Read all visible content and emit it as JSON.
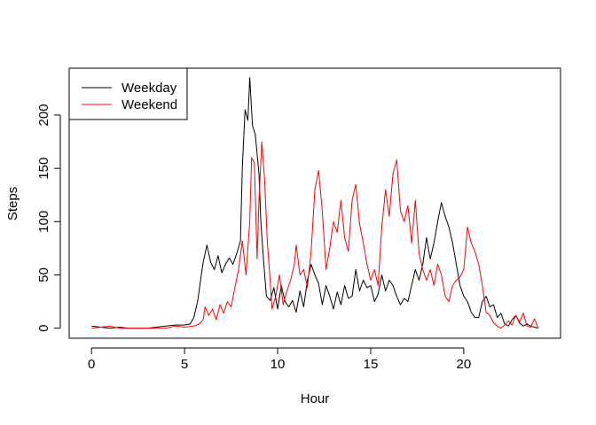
{
  "chart_data": {
    "type": "line",
    "title": "",
    "xlabel": "Hour",
    "ylabel": "Steps",
    "xlim": [
      -1.2,
      25.2
    ],
    "ylim": [
      -9.4,
      244
    ],
    "x_ticks": [
      0,
      5,
      10,
      15,
      20
    ],
    "y_ticks": [
      0,
      50,
      100,
      150,
      200
    ],
    "grid": false,
    "legend_position": "top-left",
    "series": [
      {
        "name": "Weekday",
        "color": "#000000",
        "points": [
          [
            0.0,
            2
          ],
          [
            0.5,
            1
          ],
          [
            1.0,
            0
          ],
          [
            1.5,
            1
          ],
          [
            2.0,
            0
          ],
          [
            2.5,
            0
          ],
          [
            3.0,
            0
          ],
          [
            3.5,
            1
          ],
          [
            4.0,
            2
          ],
          [
            4.5,
            3
          ],
          [
            5.0,
            3
          ],
          [
            5.3,
            4
          ],
          [
            5.5,
            10
          ],
          [
            5.7,
            25
          ],
          [
            5.9,
            50
          ],
          [
            6.0,
            62
          ],
          [
            6.2,
            78
          ],
          [
            6.4,
            62
          ],
          [
            6.6,
            55
          ],
          [
            6.8,
            68
          ],
          [
            7.0,
            52
          ],
          [
            7.2,
            60
          ],
          [
            7.4,
            66
          ],
          [
            7.6,
            60
          ],
          [
            7.8,
            70
          ],
          [
            8.0,
            82
          ],
          [
            8.1,
            150
          ],
          [
            8.25,
            205
          ],
          [
            8.4,
            195
          ],
          [
            8.5,
            235
          ],
          [
            8.65,
            190
          ],
          [
            8.8,
            182
          ],
          [
            9.0,
            145
          ],
          [
            9.1,
            100
          ],
          [
            9.25,
            62
          ],
          [
            9.4,
            30
          ],
          [
            9.6,
            26
          ],
          [
            9.8,
            38
          ],
          [
            10.0,
            18
          ],
          [
            10.2,
            40
          ],
          [
            10.4,
            25
          ],
          [
            10.6,
            20
          ],
          [
            10.8,
            26
          ],
          [
            11.0,
            15
          ],
          [
            11.2,
            35
          ],
          [
            11.4,
            20
          ],
          [
            11.6,
            45
          ],
          [
            11.8,
            60
          ],
          [
            12.0,
            50
          ],
          [
            12.2,
            42
          ],
          [
            12.4,
            22
          ],
          [
            12.6,
            40
          ],
          [
            12.8,
            30
          ],
          [
            13.0,
            18
          ],
          [
            13.2,
            34
          ],
          [
            13.4,
            22
          ],
          [
            13.6,
            40
          ],
          [
            13.8,
            28
          ],
          [
            14.0,
            30
          ],
          [
            14.2,
            55
          ],
          [
            14.4,
            35
          ],
          [
            14.6,
            45
          ],
          [
            14.8,
            38
          ],
          [
            15.0,
            40
          ],
          [
            15.2,
            25
          ],
          [
            15.4,
            32
          ],
          [
            15.6,
            50
          ],
          [
            15.8,
            35
          ],
          [
            16.0,
            45
          ],
          [
            16.2,
            40
          ],
          [
            16.4,
            30
          ],
          [
            16.6,
            22
          ],
          [
            16.8,
            28
          ],
          [
            17.0,
            25
          ],
          [
            17.2,
            40
          ],
          [
            17.4,
            55
          ],
          [
            17.6,
            45
          ],
          [
            17.8,
            60
          ],
          [
            18.0,
            85
          ],
          [
            18.2,
            65
          ],
          [
            18.4,
            80
          ],
          [
            18.6,
            100
          ],
          [
            18.8,
            118
          ],
          [
            19.0,
            105
          ],
          [
            19.2,
            95
          ],
          [
            19.4,
            80
          ],
          [
            19.6,
            60
          ],
          [
            19.8,
            40
          ],
          [
            20.0,
            30
          ],
          [
            20.2,
            25
          ],
          [
            20.4,
            15
          ],
          [
            20.6,
            10
          ],
          [
            20.8,
            10
          ],
          [
            21.0,
            25
          ],
          [
            21.2,
            30
          ],
          [
            21.4,
            20
          ],
          [
            21.6,
            22
          ],
          [
            21.8,
            10
          ],
          [
            22.0,
            14
          ],
          [
            22.2,
            4
          ],
          [
            22.4,
            2
          ],
          [
            22.6,
            8
          ],
          [
            22.8,
            12
          ],
          [
            23.0,
            5
          ],
          [
            23.2,
            2
          ],
          [
            23.4,
            4
          ],
          [
            23.6,
            2
          ],
          [
            23.8,
            1
          ],
          [
            24.0,
            0
          ]
        ]
      },
      {
        "name": "Weekend",
        "color": "#ff0000",
        "points": [
          [
            0.0,
            0
          ],
          [
            0.5,
            1
          ],
          [
            1.0,
            2
          ],
          [
            1.5,
            0
          ],
          [
            2.0,
            0
          ],
          [
            2.5,
            0
          ],
          [
            3.0,
            0
          ],
          [
            3.5,
            0
          ],
          [
            4.0,
            0
          ],
          [
            4.5,
            2
          ],
          [
            5.0,
            1
          ],
          [
            5.5,
            2
          ],
          [
            5.8,
            4
          ],
          [
            6.0,
            8
          ],
          [
            6.1,
            20
          ],
          [
            6.3,
            12
          ],
          [
            6.5,
            18
          ],
          [
            6.7,
            8
          ],
          [
            6.9,
            22
          ],
          [
            7.1,
            14
          ],
          [
            7.3,
            25
          ],
          [
            7.5,
            20
          ],
          [
            7.7,
            38
          ],
          [
            7.9,
            55
          ],
          [
            8.1,
            82
          ],
          [
            8.3,
            50
          ],
          [
            8.5,
            100
          ],
          [
            8.6,
            160
          ],
          [
            8.75,
            155
          ],
          [
            8.9,
            65
          ],
          [
            9.0,
            120
          ],
          [
            9.15,
            175
          ],
          [
            9.3,
            140
          ],
          [
            9.45,
            80
          ],
          [
            9.6,
            45
          ],
          [
            9.7,
            18
          ],
          [
            9.9,
            30
          ],
          [
            10.1,
            50
          ],
          [
            10.3,
            22
          ],
          [
            10.5,
            35
          ],
          [
            10.7,
            45
          ],
          [
            10.9,
            60
          ],
          [
            11.0,
            78
          ],
          [
            11.2,
            50
          ],
          [
            11.4,
            55
          ],
          [
            11.6,
            38
          ],
          [
            11.8,
            72
          ],
          [
            12.0,
            130
          ],
          [
            12.2,
            148
          ],
          [
            12.4,
            110
          ],
          [
            12.6,
            55
          ],
          [
            12.8,
            75
          ],
          [
            13.0,
            100
          ],
          [
            13.2,
            90
          ],
          [
            13.4,
            120
          ],
          [
            13.6,
            85
          ],
          [
            13.8,
            72
          ],
          [
            14.0,
            120
          ],
          [
            14.2,
            135
          ],
          [
            14.4,
            98
          ],
          [
            14.6,
            80
          ],
          [
            14.8,
            60
          ],
          [
            15.0,
            45
          ],
          [
            15.2,
            55
          ],
          [
            15.4,
            40
          ],
          [
            15.6,
            95
          ],
          [
            15.8,
            130
          ],
          [
            16.0,
            105
          ],
          [
            16.2,
            145
          ],
          [
            16.4,
            158
          ],
          [
            16.6,
            110
          ],
          [
            16.8,
            100
          ],
          [
            17.0,
            115
          ],
          [
            17.2,
            80
          ],
          [
            17.4,
            120
          ],
          [
            17.6,
            70
          ],
          [
            17.8,
            55
          ],
          [
            18.0,
            45
          ],
          [
            18.2,
            55
          ],
          [
            18.4,
            40
          ],
          [
            18.6,
            60
          ],
          [
            18.8,
            50
          ],
          [
            19.0,
            30
          ],
          [
            19.2,
            25
          ],
          [
            19.4,
            40
          ],
          [
            19.6,
            45
          ],
          [
            19.8,
            48
          ],
          [
            20.0,
            55
          ],
          [
            20.2,
            95
          ],
          [
            20.4,
            80
          ],
          [
            20.6,
            72
          ],
          [
            20.8,
            60
          ],
          [
            21.0,
            40
          ],
          [
            21.2,
            15
          ],
          [
            21.4,
            12
          ],
          [
            21.6,
            5
          ],
          [
            21.8,
            2
          ],
          [
            22.0,
            0
          ],
          [
            22.2,
            3
          ],
          [
            22.4,
            7
          ],
          [
            22.6,
            3
          ],
          [
            22.8,
            12
          ],
          [
            23.0,
            6
          ],
          [
            23.2,
            14
          ],
          [
            23.4,
            2
          ],
          [
            23.6,
            1
          ],
          [
            23.8,
            9
          ],
          [
            24.0,
            0
          ]
        ]
      }
    ]
  }
}
